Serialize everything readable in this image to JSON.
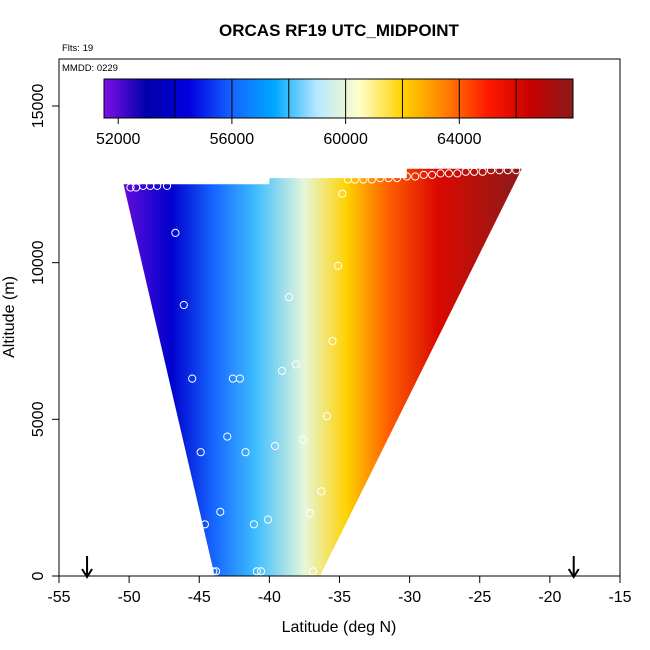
{
  "chart_data": {
    "type": "heatmap",
    "title": "ORCAS RF19 UTC_MIDPOINT",
    "flights_label": "Flts: 19",
    "date_label": "MMDD: 0229",
    "xlabel": "Latitude (deg N)",
    "ylabel": "Altitude (m)",
    "xlim": [
      -55,
      -15
    ],
    "ylim": [
      0,
      16500
    ],
    "x_ticks": [
      -55,
      -50,
      -45,
      -40,
      -35,
      -30,
      -25,
      -20,
      -15
    ],
    "y_ticks": [
      0,
      5000,
      10000,
      15000
    ],
    "colorbar": {
      "range": [
        51500,
        68000
      ],
      "ticks": [
        52000,
        56000,
        60000,
        64000
      ],
      "boundaries": [
        54000,
        56000,
        58000,
        60000,
        62000,
        64000,
        66000
      ],
      "colors": [
        "#7f10e8",
        "#0000a8",
        "#0000e0",
        "#1565ff",
        "#00a8ff",
        "#b8e8ff",
        "#ffffc8",
        "#ffd200",
        "#ff8000",
        "#ff1a00",
        "#c80000",
        "#8b1a1a"
      ]
    },
    "field": {
      "value_at_lat": [
        {
          "lat": -50.5,
          "value": 51800
        },
        {
          "lat": -47.0,
          "value": 54000
        },
        {
          "lat": -44.0,
          "value": 56000
        },
        {
          "lat": -41.0,
          "value": 58000
        },
        {
          "lat": -37.5,
          "value": 60000
        },
        {
          "lat": -34.5,
          "value": 62000
        },
        {
          "lat": -31.5,
          "value": 64000
        },
        {
          "lat": -28.0,
          "value": 66000
        },
        {
          "lat": -22.0,
          "value": 68000
        }
      ],
      "domain": {
        "bottom": {
          "alt": 0,
          "lat_min": -43.9,
          "lat_max": -36.4
        },
        "top_left": {
          "alt": 12500,
          "lat_min": -50.4,
          "lat_max": -40.0
        },
        "top_mid": {
          "alt": 12700,
          "lat_min": -40.0,
          "lat_max": -30.2
        },
        "top_right": {
          "alt": 13000,
          "lat_min": -30.2,
          "lat_max": -22.0
        }
      }
    },
    "observations": [
      {
        "lat": -49.9,
        "alt": 12400
      },
      {
        "lat": -49.5,
        "alt": 12400
      },
      {
        "lat": -49.0,
        "alt": 12450
      },
      {
        "lat": -48.5,
        "alt": 12450
      },
      {
        "lat": -48.0,
        "alt": 12450
      },
      {
        "lat": -47.3,
        "alt": 12450
      },
      {
        "lat": -46.7,
        "alt": 10950
      },
      {
        "lat": -46.1,
        "alt": 8650
      },
      {
        "lat": -45.5,
        "alt": 6300
      },
      {
        "lat": -44.9,
        "alt": 3950
      },
      {
        "lat": -44.6,
        "alt": 1650
      },
      {
        "lat": -43.5,
        "alt": 2050
      },
      {
        "lat": -44.0,
        "alt": 150
      },
      {
        "lat": -43.8,
        "alt": 150
      },
      {
        "lat": -43.0,
        "alt": 4450
      },
      {
        "lat": -42.6,
        "alt": 6300
      },
      {
        "lat": -42.1,
        "alt": 6300
      },
      {
        "lat": -41.7,
        "alt": 3950
      },
      {
        "lat": -41.1,
        "alt": 1650
      },
      {
        "lat": -40.9,
        "alt": 150
      },
      {
        "lat": -40.6,
        "alt": 150
      },
      {
        "lat": -40.1,
        "alt": 1800
      },
      {
        "lat": -39.6,
        "alt": 4150
      },
      {
        "lat": -39.1,
        "alt": 6550
      },
      {
        "lat": -38.6,
        "alt": 8900
      },
      {
        "lat": -38.1,
        "alt": 6750
      },
      {
        "lat": -37.6,
        "alt": 4350
      },
      {
        "lat": -37.1,
        "alt": 2000
      },
      {
        "lat": -36.9,
        "alt": 150
      },
      {
        "lat": -36.3,
        "alt": 2700
      },
      {
        "lat": -35.9,
        "alt": 5100
      },
      {
        "lat": -35.5,
        "alt": 7500
      },
      {
        "lat": -35.1,
        "alt": 9900
      },
      {
        "lat": -34.8,
        "alt": 12200
      },
      {
        "lat": -34.4,
        "alt": 12650
      },
      {
        "lat": -33.9,
        "alt": 12650
      },
      {
        "lat": -33.3,
        "alt": 12650
      },
      {
        "lat": -32.7,
        "alt": 12650
      },
      {
        "lat": -32.1,
        "alt": 12700
      },
      {
        "lat": -31.5,
        "alt": 12700
      },
      {
        "lat": -30.9,
        "alt": 12700
      },
      {
        "lat": -30.2,
        "alt": 12750
      },
      {
        "lat": -29.6,
        "alt": 12750
      },
      {
        "lat": -29.0,
        "alt": 12800
      },
      {
        "lat": -28.4,
        "alt": 12800
      },
      {
        "lat": -27.8,
        "alt": 12850
      },
      {
        "lat": -27.2,
        "alt": 12850
      },
      {
        "lat": -26.6,
        "alt": 12850
      },
      {
        "lat": -26.0,
        "alt": 12900
      },
      {
        "lat": -25.4,
        "alt": 12900
      },
      {
        "lat": -24.8,
        "alt": 12900
      },
      {
        "lat": -24.2,
        "alt": 12950
      },
      {
        "lat": -23.6,
        "alt": 12950
      },
      {
        "lat": -23.0,
        "alt": 12950
      },
      {
        "lat": -22.4,
        "alt": 12950
      }
    ],
    "markers": [
      {
        "type": "down-arrow",
        "lat": -53.0
      },
      {
        "type": "down-arrow",
        "lat": -18.3
      }
    ],
    "grid": false,
    "legend": "colorbar top inside plot"
  }
}
